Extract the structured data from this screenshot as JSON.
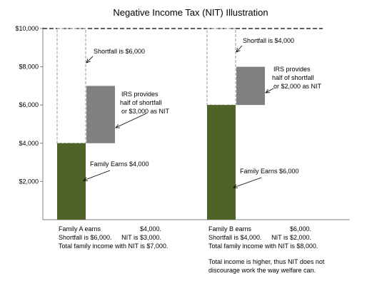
{
  "chart_data": {
    "type": "bar",
    "title": "Negative Income Tax (NIT) Illustration",
    "ylim": [
      0,
      10000
    ],
    "yticks": [
      {
        "value": 2000,
        "label": "$2,000"
      },
      {
        "value": 4000,
        "label": "$4,000"
      },
      {
        "value": 6000,
        "label": "$6,000"
      },
      {
        "value": 8000,
        "label": "$8,000"
      },
      {
        "value": 10000,
        "label": "$10,000"
      }
    ],
    "threshold": 10000,
    "grid": false,
    "colors": {
      "earnings": "#4f6228",
      "nit": "#808080",
      "shortfall_outline": "#a6a6a6",
      "threshold_line": "#000000"
    },
    "families": [
      {
        "earnings": 4000,
        "nit_range": [
          4000,
          7000
        ],
        "annotations": {
          "shortfall": "Shortfall is $6,000",
          "irs": [
            "IRS provides",
            "half of shortfall",
            "or $3,000 as NIT"
          ],
          "earns": "Family Earns $4,000"
        },
        "summary": {
          "line1_label": "Family A earns",
          "line1_value": "$4,000.",
          "line2_label": "Shortfall is $6,000.",
          "line2_value": "NIT is $3,000.",
          "line3": "Total family income with NIT is $7,000."
        }
      },
      {
        "earnings": 6000,
        "nit_range": [
          6000,
          8000
        ],
        "annotations": {
          "shortfall": "Shortfall is $4,000",
          "irs": [
            "IRS provides",
            "half of shortfall",
            "or $2,000 as NIT"
          ],
          "earns": "Family Earns $6,000"
        },
        "summary": {
          "line1_label": "Family B earns",
          "line1_value": "$6,000.",
          "line2_label": "Shortfall is $4,000.",
          "line2_value": "NIT is $2,000.",
          "line3": "Total family income with NIT is $8,000."
        }
      }
    ],
    "footnote": [
      "Total income is higher, thus NIT does not",
      "discourage work the way welfare can."
    ]
  }
}
